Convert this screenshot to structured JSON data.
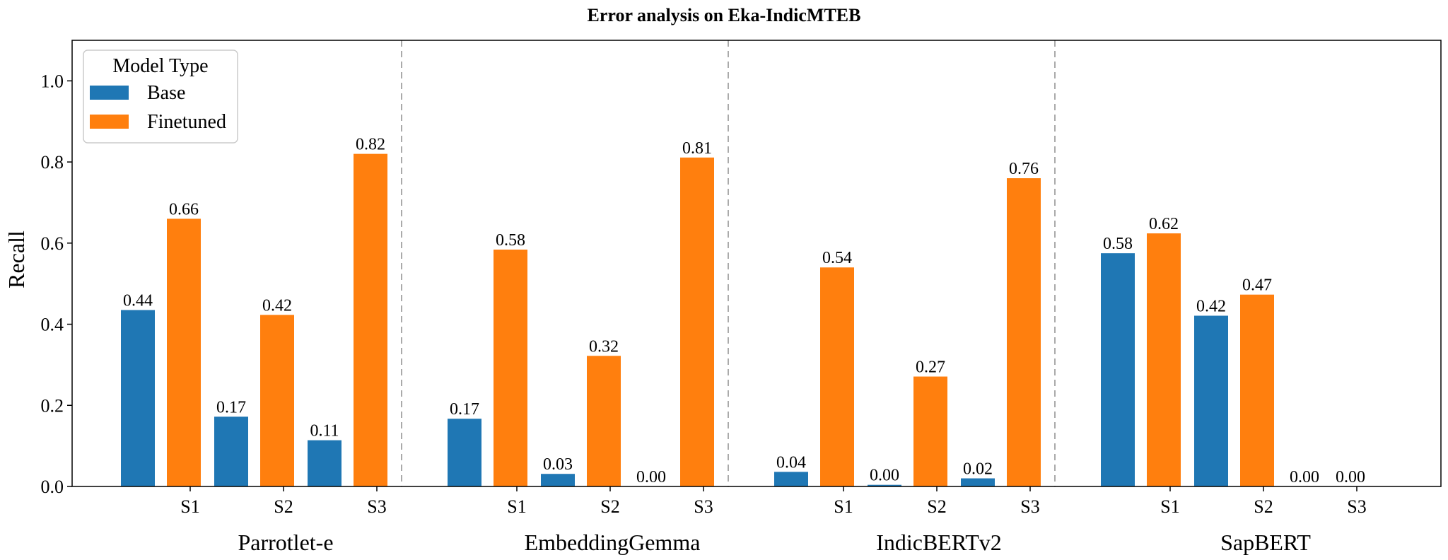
{
  "chart_data": {
    "type": "bar",
    "title": "Error analysis on Eka-IndicMTEB",
    "ylabel": "Recall",
    "xlabel": "",
    "ylim": [
      0,
      1.1
    ],
    "yticks": [
      "0.0",
      "0.2",
      "0.4",
      "0.6",
      "0.8",
      "1.0"
    ],
    "grid": false,
    "legend": {
      "title": "Model Type",
      "placement": "top-left",
      "entries": [
        {
          "name": "Base",
          "color": "#1f77b4"
        },
        {
          "name": "Finetuned",
          "color": "#ff7f0e"
        }
      ]
    },
    "groups": [
      {
        "name": "Parrotlet-e",
        "subcategories": [
          "S1",
          "S2",
          "S3"
        ],
        "base": [
          0.435,
          0.172,
          0.114
        ],
        "finetuned": [
          0.66,
          0.423,
          0.82
        ],
        "base_labels": [
          "0.44",
          "0.17",
          "0.11"
        ],
        "finetuned_labels": [
          "0.66",
          "0.42",
          "0.82"
        ]
      },
      {
        "name": "EmbeddingGemma",
        "subcategories": [
          "S1",
          "S2",
          "S3"
        ],
        "base": [
          0.167,
          0.031,
          0.0
        ],
        "finetuned": [
          0.584,
          0.322,
          0.811
        ],
        "base_labels": [
          "0.17",
          "0.03",
          "0.00"
        ],
        "finetuned_labels": [
          "0.58",
          "0.32",
          "0.81"
        ]
      },
      {
        "name": "IndicBERTv2",
        "subcategories": [
          "S1",
          "S2",
          "S3"
        ],
        "base": [
          0.036,
          0.004,
          0.02
        ],
        "finetuned": [
          0.54,
          0.271,
          0.76
        ],
        "base_labels": [
          "0.04",
          "0.00",
          "0.02"
        ],
        "finetuned_labels": [
          "0.54",
          "0.27",
          "0.76"
        ]
      },
      {
        "name": "SapBERT",
        "subcategories": [
          "S1",
          "S2",
          "S3"
        ],
        "base": [
          0.575,
          0.421,
          0.0
        ],
        "finetuned": [
          0.624,
          0.473,
          0.0
        ],
        "base_labels": [
          "0.58",
          "0.42",
          "0.00"
        ],
        "finetuned_labels": [
          "0.62",
          "0.47",
          "0.00"
        ]
      }
    ]
  }
}
